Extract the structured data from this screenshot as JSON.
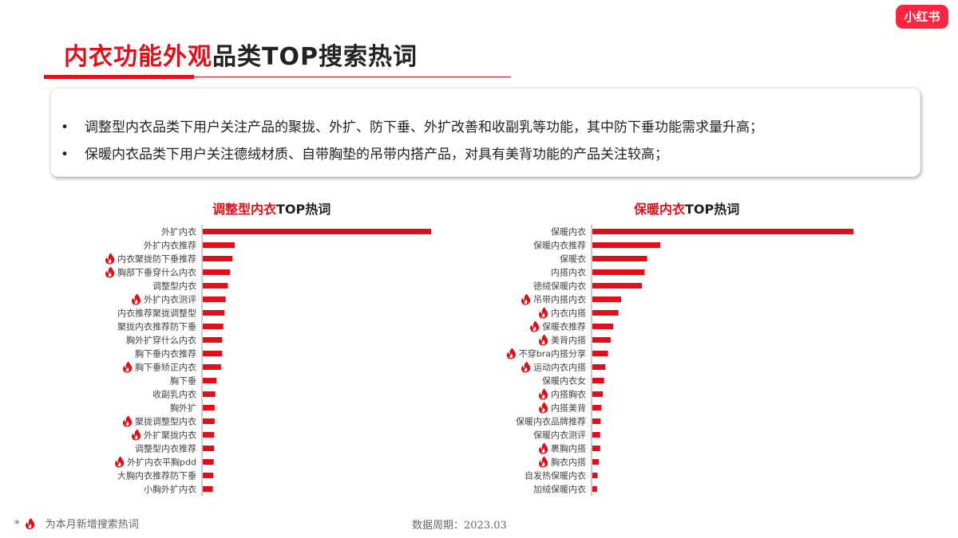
{
  "brand": {
    "logo_text": "小红书"
  },
  "header": {
    "title_red": "内衣功能外观",
    "title_dark": "品类TOP搜索热词"
  },
  "summary": {
    "bullet_char": "•",
    "bullets": [
      "调整型内衣品类下用户关注产品的聚拢、外扩、防下垂、外扩改善和收副乳等功能，其中防下垂功能需求量升高；",
      "保暖内衣品类下用户关注德绒材质、自带胸垫的吊带内搭产品，对具有美背功能的产品关注较高；"
    ]
  },
  "colors": {
    "accent": "#e0101b",
    "bar": "#e0101b",
    "text": "#222222",
    "muted": "#666666"
  },
  "chart_data": [
    {
      "type": "bar",
      "orientation": "horizontal",
      "title_red": "调整型内衣",
      "title_dark": "TOP热词",
      "categories": [
        "外扩内衣",
        "外扩内衣推荐",
        "内衣聚拢防下垂推荐",
        "胸部下垂穿什么内衣",
        "调整型内衣",
        "外扩内衣测评",
        "内衣推荐聚拢调整型",
        "聚拢内衣推荐防下垂",
        "胸外扩穿什么内衣",
        "胸下垂内衣推荐",
        "胸下垂矫正内衣",
        "胸下垂",
        "收副乳内衣",
        "胸外扩",
        "聚拢调整型内衣",
        "外扩聚拢内衣",
        "调整型内衣推荐",
        "外扩内衣平胸pdd",
        "大胸内衣推荐防下垂",
        "小胸外扩内衣"
      ],
      "values": [
        100,
        14,
        13,
        12,
        11,
        10,
        9.5,
        9,
        8.5,
        8.5,
        8,
        6,
        5.5,
        5.2,
        5.2,
        5,
        5,
        4.8,
        4.6,
        4.4
      ],
      "new_keyword": [
        false,
        false,
        true,
        true,
        false,
        true,
        false,
        false,
        false,
        false,
        true,
        false,
        false,
        false,
        true,
        true,
        false,
        true,
        false,
        false
      ],
      "grid": false,
      "legend": "none"
    },
    {
      "type": "bar",
      "orientation": "horizontal",
      "title_red": "保暖内衣",
      "title_dark": "TOP热词",
      "categories": [
        "保暖内衣",
        "保暖内衣推荐",
        "保暖衣",
        "内搭内衣",
        "德绒保暖内衣",
        "吊带内搭内衣",
        "内衣内搭",
        "保暖衣推荐",
        "美背内搭",
        "不穿bra内搭分享",
        "运动内衣内搭",
        "保暖内衣女",
        "内搭胸衣",
        "内搭美背",
        "保暖内衣品牌推荐",
        "保暖内衣测评",
        "裹胸内搭",
        "胸衣内搭",
        "自发热保暖内衣",
        "加绒保暖内衣"
      ],
      "values": [
        100,
        26,
        21,
        20,
        19,
        11,
        10,
        8,
        7,
        6,
        5,
        4.5,
        4,
        3.5,
        3.2,
        3,
        3,
        2.5,
        2,
        1.8
      ],
      "new_keyword": [
        false,
        false,
        false,
        false,
        false,
        true,
        true,
        true,
        true,
        true,
        true,
        false,
        true,
        true,
        false,
        false,
        true,
        true,
        false,
        false
      ],
      "grid": false,
      "legend": "none"
    }
  ],
  "footer": {
    "legend_note": "为本月新增搜索热词",
    "legend_prefix": "*",
    "period": "数据周期：2023.03"
  }
}
